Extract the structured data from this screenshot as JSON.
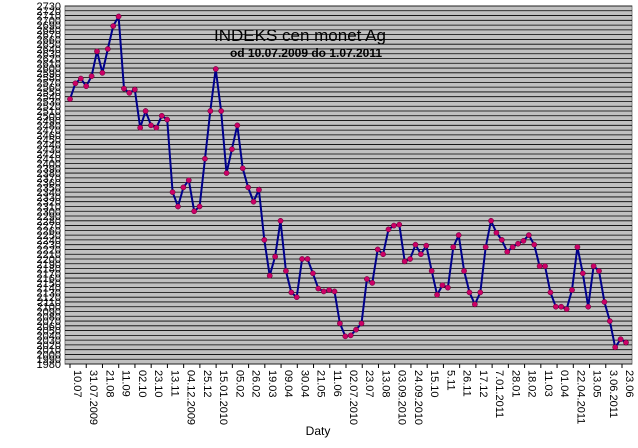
{
  "chart_data": {
    "type": "line",
    "title": "INDEKS cen monet Ag",
    "subtitle": "od 10.07.2009 do 1.07.2011",
    "xlabel": "Daty",
    "ylabel": "",
    "ylim": [
      1980,
      2730
    ],
    "ytick_step": 10,
    "grid": true,
    "plot_background": "#c0c0c0",
    "line_color": "#00008b",
    "marker_color": "#cc0066",
    "x_tick_labels": [
      "10.07",
      "31.07.2009",
      "21.08",
      "11.09",
      "02.10",
      "23.10",
      "13.11",
      "04.12.2009",
      "25.12",
      "15.01.2010",
      "05.02",
      "26.02",
      "19.03",
      "09.04",
      "30.04",
      "21.05",
      "11.06",
      "02.07.2010",
      "23.07",
      "13.08",
      "03.09.2010",
      "24.09.2010",
      "15.10",
      "5.11",
      "26.11",
      "17.12",
      "7.01.2011",
      "28.01",
      "18.02",
      "11.03",
      "01.04",
      "22.04.2011",
      "13.05",
      "3.06.2011",
      "23.06"
    ],
    "series": [
      {
        "values": [
          2535,
          2568,
          2578,
          2562,
          2583,
          2635,
          2590,
          2640,
          2688,
          2708,
          2557,
          2548,
          2555,
          2475,
          2510,
          2480,
          2475,
          2500,
          2492,
          2340,
          2310,
          2350,
          2365,
          2300,
          2310,
          2410,
          2510,
          2598,
          2510,
          2380,
          2430,
          2480,
          2390,
          2350,
          2320,
          2345,
          2240,
          2165,
          2205,
          2280,
          2175,
          2130,
          2120,
          2200,
          2200,
          2170,
          2138,
          2132,
          2135,
          2132,
          2065,
          2038,
          2040,
          2052,
          2065,
          2158,
          2150,
          2220,
          2210,
          2262,
          2270,
          2272,
          2195,
          2200,
          2230,
          2210,
          2228,
          2175,
          2125,
          2145,
          2140,
          2225,
          2250,
          2175,
          2130,
          2105,
          2130,
          2225,
          2280,
          2255,
          2240,
          2215,
          2225,
          2232,
          2238,
          2250,
          2230,
          2185,
          2185,
          2130,
          2100,
          2100,
          2095,
          2135,
          2225,
          2170,
          2100,
          2185,
          2175,
          2110,
          2070,
          2015,
          2032,
          2025
        ]
      }
    ]
  }
}
